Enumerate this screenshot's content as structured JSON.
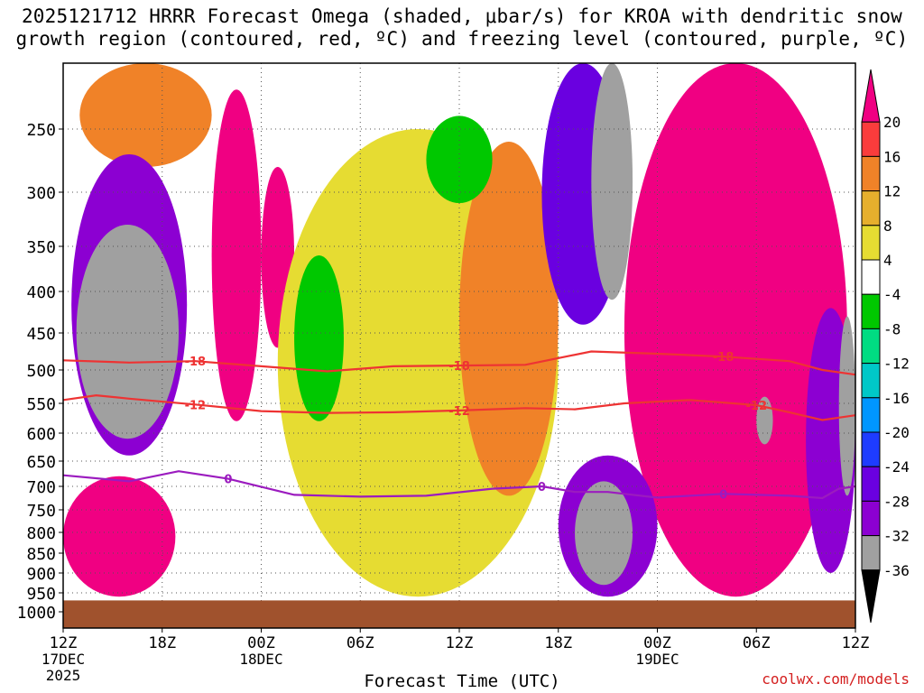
{
  "title": {
    "line1": "2025121712 HRRR Forecast Omega (shaded, μbar/s) for KROA with dendritic snow",
    "line2": "growth region (contoured, red, ºC) and freezing level (contoured, purple, ºC)"
  },
  "credit": "coolwx.com/models",
  "chart_data": {
    "type": "heatmap",
    "title": "2025121712 HRRR Forecast Omega (shaded, μbar/s) for KROA with dendritic snow growth region (contoured, red, ºC) and freezing level (contoured, purple, ºC)",
    "xlabel": "Forecast Time (UTC)",
    "ylabel": "",
    "x_ticks": [
      {
        "label": "12Z",
        "sub": [
          "17DEC",
          "2025"
        ],
        "hour": 0
      },
      {
        "label": "18Z",
        "sub": [],
        "hour": 6
      },
      {
        "label": "00Z",
        "sub": [
          "18DEC"
        ],
        "hour": 12
      },
      {
        "label": "06Z",
        "sub": [],
        "hour": 18
      },
      {
        "label": "12Z",
        "sub": [],
        "hour": 24
      },
      {
        "label": "18Z",
        "sub": [],
        "hour": 30
      },
      {
        "label": "00Z",
        "sub": [
          "19DEC"
        ],
        "hour": 36
      },
      {
        "label": "06Z",
        "sub": [],
        "hour": 42
      },
      {
        "label": "12Z",
        "sub": [],
        "hour": 48
      }
    ],
    "xlim": [
      0,
      48
    ],
    "y_ticks": [
      250,
      300,
      350,
      400,
      450,
      500,
      550,
      600,
      650,
      700,
      750,
      800,
      850,
      900,
      950,
      1000
    ],
    "ylim": [
      200,
      1000
    ],
    "ground_level_hPa": 970,
    "ground_color": "#a0522d",
    "colorbar": {
      "levels": [
        -36,
        -32,
        -28,
        -24,
        -20,
        -16,
        -12,
        -8,
        -4,
        4,
        8,
        12,
        16,
        20
      ],
      "labels": [
        "20",
        "16",
        "12",
        "8",
        "4",
        "-4",
        "-8",
        "-12",
        "-16",
        "-20",
        "-24",
        "-28",
        "-32",
        "-36"
      ],
      "colors": [
        "#000000",
        "#a0a0a0",
        "#8c00d2",
        "#6a00e0",
        "#1e3cff",
        "#0096ff",
        "#00c8c8",
        "#00dc82",
        "#00c800",
        "#ffffff",
        "#e6dc32",
        "#e6af2d",
        "#f08228",
        "#fa3c3c",
        "#f00082"
      ]
    },
    "contours": [
      {
        "name": "-18",
        "color": "#ee3333",
        "label": "-18",
        "points": [
          [
            0,
            487
          ],
          [
            4,
            490
          ],
          [
            8,
            488
          ],
          [
            12,
            495
          ],
          [
            16,
            502
          ],
          [
            20,
            495
          ],
          [
            24,
            494
          ],
          [
            28,
            493
          ],
          [
            32,
            475
          ],
          [
            36,
            478
          ],
          [
            40,
            482
          ],
          [
            44,
            488
          ],
          [
            46,
            500
          ],
          [
            48,
            507
          ]
        ]
      },
      {
        "name": "-12",
        "color": "#ee3333",
        "label": "-12",
        "points": [
          [
            0,
            545
          ],
          [
            2,
            538
          ],
          [
            4,
            543
          ],
          [
            8,
            552
          ],
          [
            12,
            563
          ],
          [
            16,
            566
          ],
          [
            20,
            565
          ],
          [
            24,
            562
          ],
          [
            28,
            558
          ],
          [
            31,
            560
          ],
          [
            34,
            550
          ],
          [
            38,
            545
          ],
          [
            42,
            553
          ],
          [
            44,
            565
          ],
          [
            46,
            578
          ],
          [
            48,
            570
          ]
        ]
      },
      {
        "name": "0",
        "color": "#9b1bbf",
        "label": "0",
        "points": [
          [
            0,
            678
          ],
          [
            4,
            690
          ],
          [
            7,
            670
          ],
          [
            10,
            685
          ],
          [
            14,
            718
          ],
          [
            18,
            722
          ],
          [
            22,
            720
          ],
          [
            26,
            705
          ],
          [
            29,
            700
          ],
          [
            31,
            712
          ],
          [
            33,
            712
          ],
          [
            36,
            724
          ],
          [
            40,
            716
          ],
          [
            44,
            720
          ],
          [
            46,
            725
          ],
          [
            47,
            705
          ],
          [
            48,
            700
          ]
        ]
      }
    ],
    "regions": [
      {
        "value": 12,
        "hour_range": [
          1,
          9
        ],
        "p_range": [
          200,
          280
        ]
      },
      {
        "value": -32,
        "hour_range": [
          0.5,
          7.5
        ],
        "p_range": [
          270,
          640
        ]
      },
      {
        "value": -36,
        "hour_range": [
          0.8,
          7
        ],
        "p_range": [
          330,
          610
        ]
      },
      {
        "value": 20,
        "hour_range": [
          0,
          6.8
        ],
        "p_range": [
          680,
          960
        ]
      },
      {
        "value": 20,
        "hour_range": [
          9,
          12
        ],
        "p_range": [
          220,
          580
        ]
      },
      {
        "value": 20,
        "hour_range": [
          12,
          14
        ],
        "p_range": [
          280,
          470
        ]
      },
      {
        "value": 4,
        "hour_range": [
          13,
          30
        ],
        "p_range": [
          250,
          960
        ]
      },
      {
        "value": 12,
        "hour_range": [
          24,
          30
        ],
        "p_range": [
          260,
          720
        ]
      },
      {
        "value": -8,
        "hour_range": [
          22,
          26
        ],
        "p_range": [
          240,
          310
        ]
      },
      {
        "value": -8,
        "hour_range": [
          14,
          17
        ],
        "p_range": [
          360,
          580
        ]
      },
      {
        "value": -28,
        "hour_range": [
          29,
          34
        ],
        "p_range": [
          200,
          440
        ]
      },
      {
        "value": -36,
        "hour_range": [
          32,
          34.5
        ],
        "p_range": [
          200,
          410
        ]
      },
      {
        "value": 20,
        "hour_range": [
          34,
          47.5
        ],
        "p_range": [
          200,
          960
        ]
      },
      {
        "value": -32,
        "hour_range": [
          30,
          36
        ],
        "p_range": [
          640,
          960
        ]
      },
      {
        "value": -36,
        "hour_range": [
          31,
          34.5
        ],
        "p_range": [
          690,
          930
        ]
      },
      {
        "value": -36,
        "hour_range": [
          42,
          43
        ],
        "p_range": [
          540,
          620
        ]
      },
      {
        "value": -32,
        "hour_range": [
          45,
          48
        ],
        "p_range": [
          420,
          900
        ]
      },
      {
        "value": -36,
        "hour_range": [
          47,
          48
        ],
        "p_range": [
          430,
          720
        ]
      }
    ]
  }
}
